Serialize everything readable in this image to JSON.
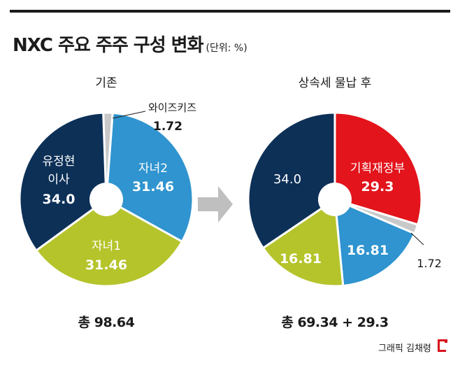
{
  "header": {
    "title": "NXC 주요 주주 구성 변화",
    "unit": "(단위: %)"
  },
  "credit": "그래픽 김채령",
  "colors": {
    "navy": "#0d3057",
    "blue": "#2f94cf",
    "lime": "#b5c42b",
    "gray": "#c8c8c8",
    "red": "#e3141b",
    "arrow": "#bfbfbf",
    "logo": "#d9121c"
  },
  "chart_data": [
    {
      "type": "pie",
      "title": "기존",
      "total_label": "총 98.64",
      "slices": [
        {
          "name": "와이즈키즈",
          "value": 1.72,
          "value_label": "1.72",
          "color": "#c8c8c8"
        },
        {
          "name": "자녀2",
          "value": 31.46,
          "value_label": "31.46",
          "color": "#2f94cf"
        },
        {
          "name": "자녀1",
          "value": 31.46,
          "value_label": "31.46",
          "color": "#b5c42b"
        },
        {
          "name": "유정현 이사",
          "value": 34.0,
          "value_label": "34.0",
          "color": "#0d3057"
        }
      ]
    },
    {
      "type": "pie",
      "title": "상속세 물납 후",
      "total_label": "총 69.34 + 29.3",
      "slices": [
        {
          "name": "기획재정부",
          "value": 29.3,
          "value_label": "29.3",
          "color": "#e3141b"
        },
        {
          "name": "",
          "value": 1.72,
          "value_label": "1.72",
          "color": "#c8c8c8"
        },
        {
          "name": "",
          "value": 16.81,
          "value_label": "16.81",
          "color": "#2f94cf"
        },
        {
          "name": "",
          "value": 16.81,
          "value_label": "16.81",
          "color": "#b5c42b"
        },
        {
          "name": "",
          "value": 34.0,
          "value_label": "34.0",
          "color": "#0d3057"
        }
      ]
    }
  ]
}
